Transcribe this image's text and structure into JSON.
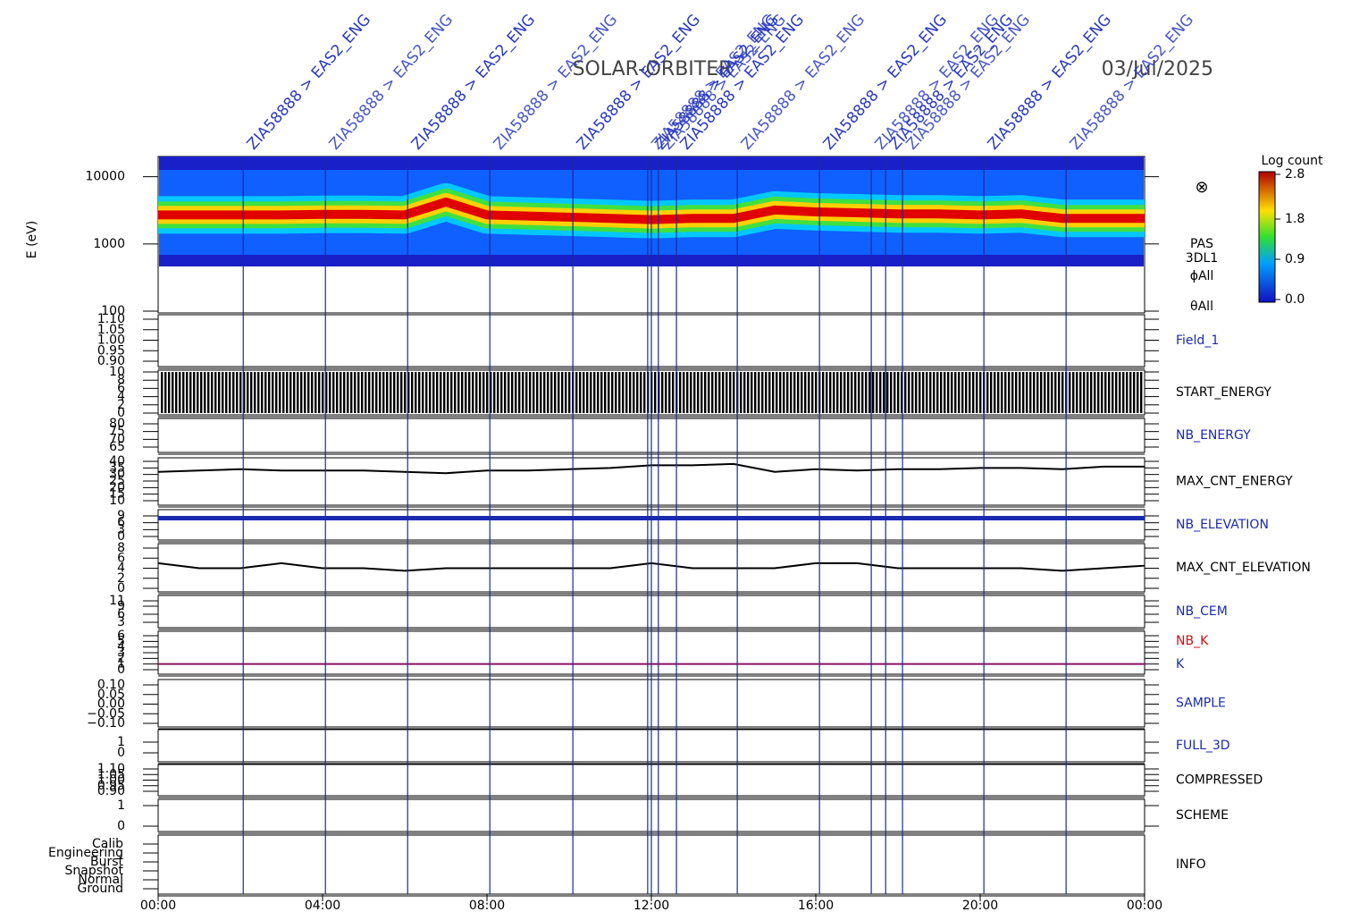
{
  "title": "SOLAR-ORBITER",
  "date": "03/Jul/2025",
  "symbol": "⊗",
  "xlim": [
    0,
    24
  ],
  "xticks": [
    {
      "value": 0,
      "label": "00:00"
    },
    {
      "value": 4,
      "label": "04:00"
    },
    {
      "value": 8,
      "label": "08:00"
    },
    {
      "value": 12,
      "label": "12:00"
    },
    {
      "value": 16,
      "label": "16:00"
    },
    {
      "value": 20,
      "label": "20:00"
    },
    {
      "value": 24,
      "label": "00:00"
    }
  ],
  "events": [
    {
      "time": 2.07,
      "label": "ZIA58888 > EAS2_ENG"
    },
    {
      "time": 4.07,
      "label": "ZIA58888 > EAS2_ENG"
    },
    {
      "time": 6.07,
      "label": "ZIA58888 > EAS2_ENG"
    },
    {
      "time": 8.07,
      "label": "ZIA58888 > EAS2_ENG"
    },
    {
      "time": 10.09,
      "label": "ZIA58888 > EAS2_ENG"
    },
    {
      "time": 11.91,
      "label": "ZIA58888 > EAS2_ENG"
    },
    {
      "time": 12.0,
      "label": "ZIA58888 > EAS2_ENG"
    },
    {
      "time": 12.17,
      "label": "ZIA58888 > EAS2_ENG"
    },
    {
      "time": 12.61,
      "label": "ZIA58888 > EAS2_ENG"
    },
    {
      "time": 14.09,
      "label": "ZIA58888 > EAS2_ENG"
    },
    {
      "time": 16.09,
      "label": "ZIA58888 > EAS2_ENG"
    },
    {
      "time": 17.35,
      "label": "ZIA58888 > EAS2_ENG"
    },
    {
      "time": 17.7,
      "label": "ZIA58888 > EAS2_ENG"
    },
    {
      "time": 18.11,
      "label": "ZIA58888 > EAS2_ENG"
    },
    {
      "time": 20.09,
      "label": "ZIA58888 > EAS2_ENG"
    },
    {
      "time": 22.09,
      "label": "ZIA58888 > EAS2_ENG"
    }
  ],
  "colorbar": {
    "title": "Log count",
    "clim": [
      0,
      2.8
    ],
    "ticks": [
      {
        "value": 0,
        "label": "0.0"
      },
      {
        "value": 0.9,
        "label": "0.9"
      },
      {
        "value": 1.8,
        "label": "1.8"
      },
      {
        "value": 2.8,
        "label": "2.8"
      }
    ]
  },
  "panels": [
    {
      "type": "spectrogram",
      "ylabel": "E (eV)",
      "log": true,
      "ylim": [
        100,
        20000
      ],
      "yticks": [
        100,
        1000,
        10000
      ],
      "labels": [
        {
          "text": "PAS",
          "color": "#000000"
        },
        {
          "text": "3DL1",
          "color": "#000000"
        },
        {
          "text": "ϕAll",
          "color": "#000000"
        },
        {
          "text": "θAll",
          "color": "#000000"
        }
      ],
      "series": [
        {
          "name": "peak",
          "color": "#e00000",
          "x": [
            0,
            1,
            2,
            3,
            4,
            5,
            6,
            7,
            8,
            9,
            10,
            11,
            12,
            13,
            14,
            15,
            16,
            17,
            18,
            19,
            20,
            21,
            22,
            23,
            24
          ],
          "values": [
            2700,
            2700,
            2700,
            2700,
            2750,
            2750,
            2700,
            4200,
            2700,
            2600,
            2500,
            2400,
            2300,
            2400,
            2400,
            3200,
            3000,
            2900,
            2800,
            2800,
            2700,
            2800,
            2400,
            2400,
            2400
          ]
        }
      ]
    },
    {
      "type": "line",
      "ylim": [
        0.9,
        1.1
      ],
      "yticks": [
        {
          "value": 1.1,
          "label": "1.10"
        },
        {
          "value": 1.05,
          "label": "1.05"
        },
        {
          "value": 1,
          "label": "1.00"
        },
        {
          "value": 0.95,
          "label": "0.95"
        },
        {
          "value": 0.9,
          "label": "0.90"
        }
      ],
      "labels": [
        {
          "text": "Field_1",
          "color": "#1a2ab0"
        }
      ]
    },
    {
      "type": "hatch",
      "ylim": [
        0,
        10
      ],
      "yticks": [
        10,
        8,
        6,
        4,
        2,
        0
      ],
      "labels": [
        {
          "text": "START_ENERGY",
          "color": "#000000"
        }
      ]
    },
    {
      "type": "line",
      "ylim": [
        65,
        80
      ],
      "yticks": [
        80,
        75,
        70,
        65
      ],
      "labels": [
        {
          "text": "NB_ENERGY",
          "color": "#1a2ab0"
        }
      ]
    },
    {
      "type": "line",
      "ylim": [
        10,
        40
      ],
      "yticks": [
        40,
        35,
        30,
        25,
        20,
        15,
        10
      ],
      "labels": [
        {
          "text": "MAX_CNT_ENERGY",
          "color": "#000000"
        }
      ],
      "series": [
        {
          "color": "#000000",
          "x": [
            0,
            1,
            2,
            3,
            4,
            5,
            6,
            7,
            8,
            9,
            10,
            11,
            12,
            13,
            14,
            15,
            16,
            17,
            18,
            19,
            20,
            21,
            22,
            23,
            24
          ],
          "values": [
            32,
            33,
            34,
            33,
            33,
            33,
            32,
            31,
            33,
            33,
            34,
            35,
            37,
            37,
            38,
            32,
            34,
            33,
            34,
            34,
            35,
            35,
            34,
            36,
            36
          ]
        }
      ]
    },
    {
      "type": "line",
      "ylim": [
        0,
        9
      ],
      "yticks": [
        9,
        6,
        3,
        0
      ],
      "labels": [
        {
          "text": "NB_ELEVATION",
          "color": "#1a2ab0"
        }
      ],
      "series": [
        {
          "color": "#1a2ab0",
          "x": [
            0,
            24
          ],
          "values": [
            8,
            8
          ]
        }
      ]
    },
    {
      "type": "line",
      "ylim": [
        0,
        8
      ],
      "yticks": [
        8,
        6,
        4,
        2,
        0
      ],
      "labels": [
        {
          "text": "MAX_CNT_ELEVATION",
          "color": "#000000"
        }
      ],
      "series": [
        {
          "color": "#000000",
          "x": [
            0,
            1,
            2,
            3,
            4,
            5,
            6,
            7,
            8,
            9,
            10,
            11,
            12,
            13,
            14,
            15,
            16,
            17,
            18,
            19,
            20,
            21,
            22,
            23,
            24
          ],
          "values": [
            5,
            4,
            4,
            5,
            4,
            4,
            3.5,
            4,
            4,
            4,
            4,
            4,
            5,
            4,
            4,
            4,
            5,
            5,
            4,
            4,
            4,
            4,
            3.5,
            4,
            4.5
          ]
        }
      ]
    },
    {
      "type": "line",
      "ylim": [
        3,
        11
      ],
      "yticks": [
        11,
        9,
        6,
        3
      ],
      "labels": [
        {
          "text": "NB_CEM",
          "color": "#1a2ab0"
        }
      ]
    },
    {
      "type": "line",
      "ylim": [
        0,
        6
      ],
      "yticks": [
        6,
        5,
        4,
        3,
        2,
        1,
        0
      ],
      "labels": [
        {
          "text": "NB_K",
          "color": "#d01010"
        },
        {
          "text": "K",
          "color": "#1a2ab0"
        }
      ],
      "series": [
        {
          "color": "#8a1060",
          "x": [
            0,
            24
          ],
          "values": [
            1,
            1
          ]
        }
      ]
    },
    {
      "type": "line",
      "ylim": [
        -0.1,
        0.1
      ],
      "yticks": [
        {
          "value": 0.1,
          "label": "0.10"
        },
        {
          "value": 0.05,
          "label": "0.05"
        },
        {
          "value": 0,
          "label": "0.00"
        },
        {
          "value": -0.05,
          "label": "−0.05"
        },
        {
          "value": -0.1,
          "label": "−0.10"
        }
      ],
      "labels": [
        {
          "text": "SAMPLE",
          "color": "#1a2ab0"
        }
      ]
    },
    {
      "type": "line",
      "ylim": [
        0,
        1
      ],
      "yticks": [
        1,
        0
      ],
      "labels": [
        {
          "text": "FULL_3D",
          "color": "#1a2ab0"
        }
      ]
    },
    {
      "type": "line",
      "ylim": [
        0.9,
        1.1
      ],
      "yticks": [
        {
          "value": 1.1,
          "label": "1.10"
        },
        {
          "value": 1.05,
          "label": "1.05"
        },
        {
          "value": 1,
          "label": "1.00"
        },
        {
          "value": 0.95,
          "label": "0.95"
        },
        {
          "value": 0.9,
          "label": "0.90"
        }
      ],
      "labels": [
        {
          "text": "COMPRESSED",
          "color": "#000000"
        }
      ]
    },
    {
      "type": "line",
      "ylim": [
        0,
        1
      ],
      "yticks": [
        1,
        0
      ],
      "labels": [
        {
          "text": "SCHEME",
          "color": "#000000"
        }
      ]
    },
    {
      "type": "category",
      "categories": [
        "Calib",
        "Engineering",
        "Burst",
        "Snapshot",
        "Normal",
        "Ground"
      ],
      "labels": [
        {
          "text": "INFO",
          "color": "#000000"
        }
      ]
    }
  ]
}
